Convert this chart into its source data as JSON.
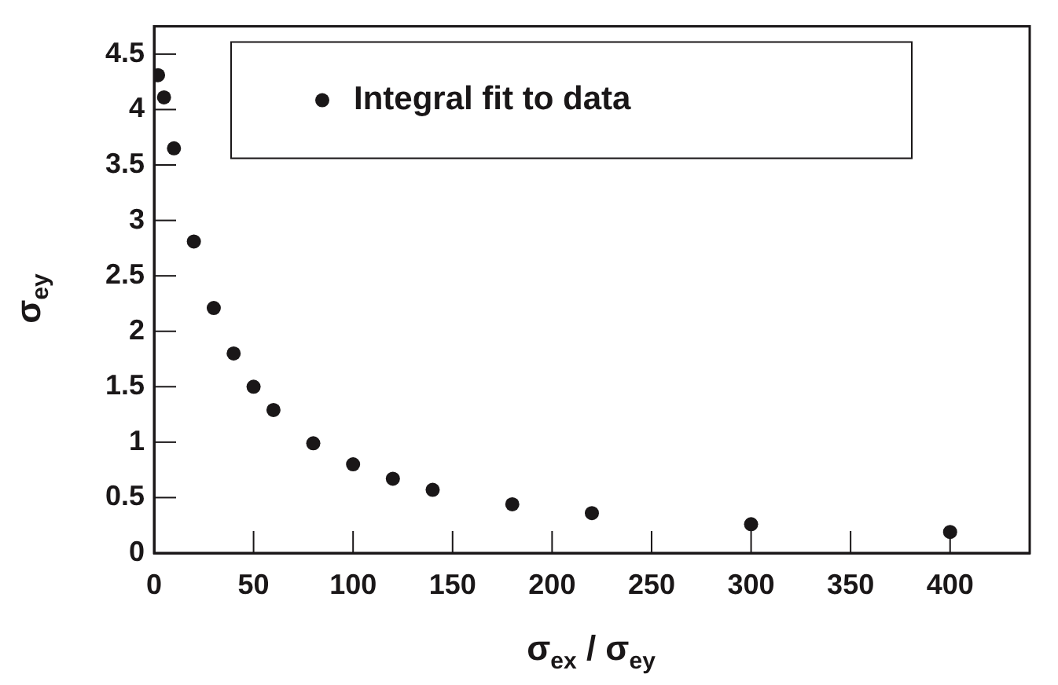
{
  "chart_data": {
    "type": "scatter",
    "xlabel": "σ$_{ex}$ / σ$_{ey}$",
    "ylabel": "σ$_{ey}$",
    "x": [
      2,
      5,
      10,
      20,
      30,
      40,
      50,
      60,
      80,
      100,
      120,
      140,
      180,
      220,
      300,
      400
    ],
    "series": [
      {
        "name": "Integral fit to data",
        "color": "#1a1718",
        "values": [
          4.31,
          4.11,
          3.65,
          2.81,
          2.21,
          1.8,
          1.5,
          1.29,
          0.99,
          0.8,
          0.67,
          0.57,
          0.44,
          0.36,
          0.26,
          0.19
        ]
      }
    ],
    "xlim": [
      0,
      440
    ],
    "xticks": [
      0,
      50,
      100,
      150,
      200,
      250,
      300,
      350,
      400
    ],
    "ylim": [
      0,
      4.75
    ],
    "yticks": [
      0,
      0.5,
      1,
      1.5,
      2,
      2.5,
      3,
      3.5,
      4,
      4.5
    ],
    "grid": false,
    "legend": "top",
    "marker": "circle"
  }
}
